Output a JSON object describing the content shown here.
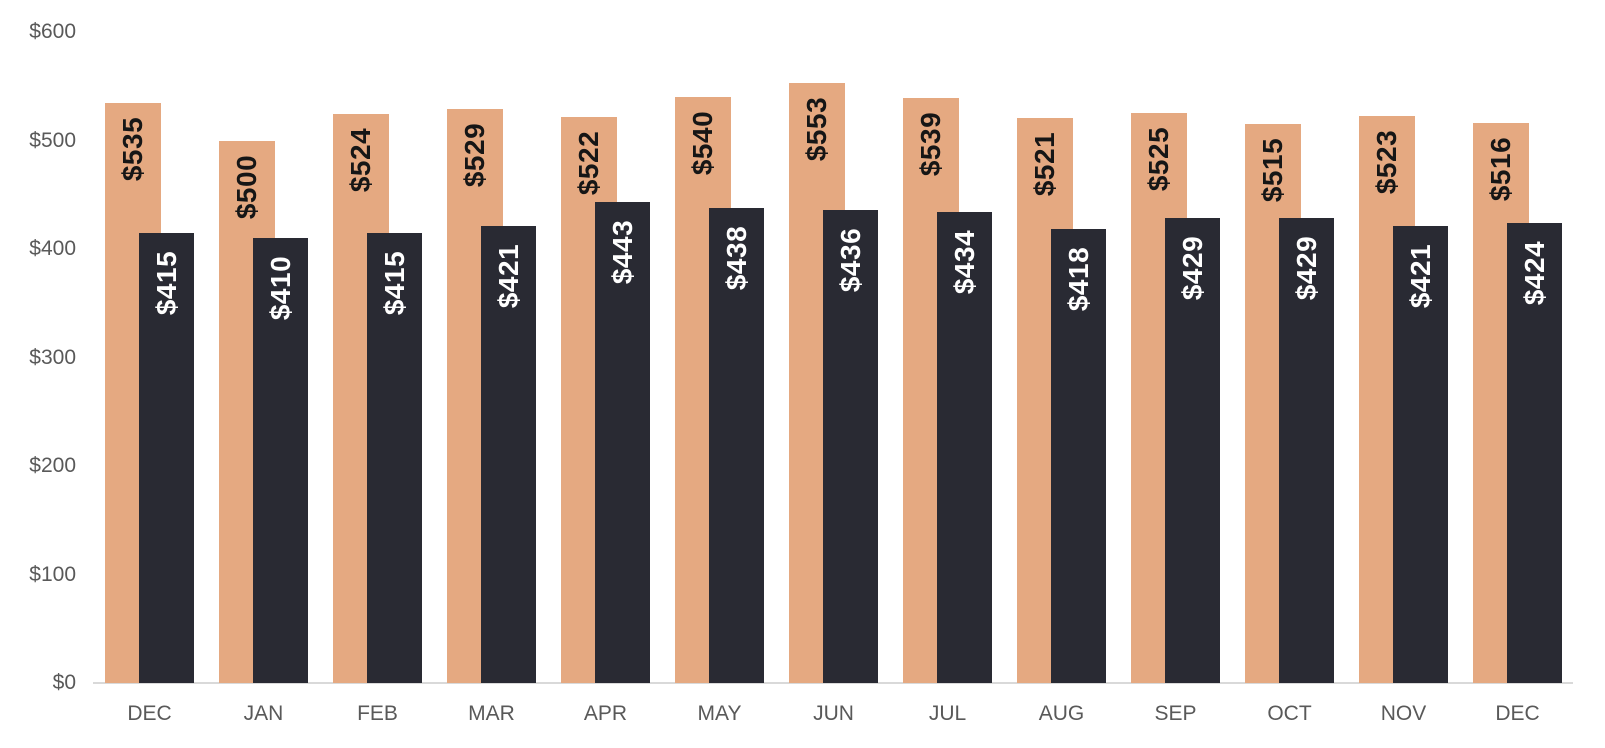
{
  "chart_data": {
    "type": "bar",
    "title": "",
    "xlabel": "",
    "ylabel": "",
    "grid": false,
    "legend": "none",
    "value_prefix": "$",
    "categories": [
      "DEC",
      "JAN",
      "FEB",
      "MAR",
      "APR",
      "MAY",
      "JUN",
      "JUL",
      "AUG",
      "SEP",
      "OCT",
      "NOV",
      "DEC"
    ],
    "series": [
      {
        "name": "series-1-tan",
        "color": "#e5a981",
        "label_color": "#161616",
        "values": [
          535,
          500,
          524,
          529,
          522,
          540,
          553,
          539,
          521,
          525,
          515,
          523,
          516
        ],
        "labels": [
          "$535",
          "$500",
          "$524",
          "$529",
          "$522",
          "$540",
          "$553",
          "$539",
          "$521",
          "$525",
          "$515",
          "$523",
          "$516"
        ]
      },
      {
        "name": "series-2-charcoal",
        "color": "#292a33",
        "label_color": "#ffffff",
        "values": [
          415,
          410,
          415,
          421,
          443,
          438,
          436,
          434,
          418,
          429,
          429,
          421,
          424
        ],
        "labels": [
          "$415",
          "$410",
          "$415",
          "$421",
          "$443",
          "$438",
          "$436",
          "$434",
          "$418",
          "$429",
          "$429",
          "$421",
          "$424"
        ]
      }
    ],
    "y_axis": {
      "min": 0,
      "max": 600,
      "tick_values": [
        0,
        100,
        200,
        300,
        400,
        500,
        600
      ],
      "tick_labels": [
        "$0",
        "$100",
        "$200",
        "$300",
        "$400",
        "$500",
        "$600"
      ]
    },
    "axis_colors": {
      "tick_text": "#595959",
      "baseline": "#d9d9d9"
    }
  }
}
